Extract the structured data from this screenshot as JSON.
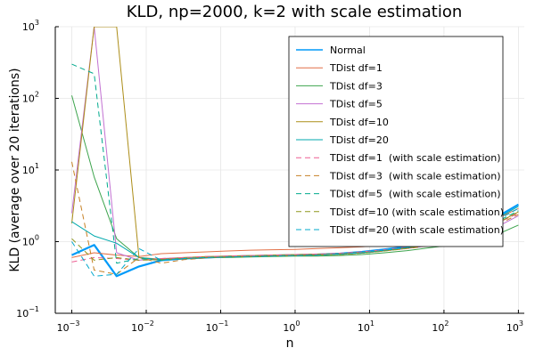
{
  "chart_data": {
    "type": "line",
    "title": "KLD, np=2000, k=2 with scale estimation",
    "xlabel": "n",
    "ylabel": "KLD (average over 20 iterations)",
    "xscale": "log",
    "yscale": "log",
    "xlim": [
      0.0006,
      1200
    ],
    "ylim": [
      0.1,
      1000
    ],
    "x_ticks": [
      {
        "value": 0.001,
        "base": "10",
        "exp": "−3"
      },
      {
        "value": 0.01,
        "base": "10",
        "exp": "−2"
      },
      {
        "value": 0.1,
        "base": "10",
        "exp": "−1"
      },
      {
        "value": 1,
        "base": "10",
        "exp": "0"
      },
      {
        "value": 10,
        "base": "10",
        "exp": "1"
      },
      {
        "value": 100,
        "base": "10",
        "exp": "2"
      },
      {
        "value": 1000,
        "base": "10",
        "exp": "3"
      }
    ],
    "y_ticks": [
      {
        "value": 0.1,
        "base": "10",
        "exp": "−1"
      },
      {
        "value": 1,
        "base": "10",
        "exp": "0"
      },
      {
        "value": 10,
        "base": "10",
        "exp": "1"
      },
      {
        "value": 100,
        "base": "10",
        "exp": "2"
      },
      {
        "value": 1000,
        "base": "10",
        "exp": "3"
      }
    ],
    "grid": true,
    "legend_position": "top-right",
    "x": [
      0.001,
      0.002,
      0.004,
      0.008,
      0.016,
      0.032,
      0.064,
      0.125,
      0.25,
      0.5,
      1,
      2,
      4,
      8,
      16,
      32,
      64,
      128,
      256,
      512,
      1000
    ],
    "series": [
      {
        "name": "Normal",
        "color": "#009af9",
        "dash": "solid",
        "width": 2.2,
        "values": [
          0.65,
          0.9,
          0.33,
          0.45,
          0.55,
          0.58,
          0.6,
          0.62,
          0.63,
          0.64,
          0.65,
          0.66,
          0.68,
          0.72,
          0.78,
          0.85,
          0.95,
          1.15,
          1.5,
          2.2,
          3.3
        ]
      },
      {
        "name": "TDist df=1",
        "color": "#e26f46",
        "dash": "solid",
        "width": 1,
        "values": [
          0.6,
          0.7,
          0.65,
          0.62,
          0.68,
          0.7,
          0.72,
          0.74,
          0.76,
          0.77,
          0.78,
          0.8,
          0.82,
          0.85,
          0.9,
          0.98,
          1.08,
          1.25,
          1.55,
          2.1,
          2.9
        ]
      },
      {
        "name": "TDist df=3",
        "color": "#3da44d",
        "dash": "solid",
        "width": 1,
        "values": [
          110,
          8,
          1.1,
          0.6,
          0.55,
          0.58,
          0.6,
          0.6,
          0.61,
          0.62,
          0.63,
          0.63,
          0.64,
          0.66,
          0.7,
          0.75,
          0.82,
          0.9,
          1.0,
          1.25,
          1.7
        ]
      },
      {
        "name": "TDist df=5",
        "color": "#c271d2",
        "dash": "solid",
        "width": 1,
        "values": [
          2.5,
          1000,
          0.7,
          0.55,
          0.58,
          0.6,
          0.61,
          0.62,
          0.63,
          0.64,
          0.65,
          0.66,
          0.67,
          0.7,
          0.75,
          0.8,
          0.88,
          1.0,
          1.2,
          1.6,
          2.3
        ]
      },
      {
        "name": "TDist df=10",
        "color": "#ac8d18",
        "dash": "solid",
        "width": 1,
        "values": [
          1.8,
          1000,
          1000,
          0.6,
          0.57,
          0.6,
          0.62,
          0.63,
          0.64,
          0.65,
          0.66,
          0.67,
          0.68,
          0.71,
          0.76,
          0.82,
          0.9,
          1.05,
          1.3,
          1.8,
          2.6
        ]
      },
      {
        "name": "TDist df=20",
        "color": "#00a9ad",
        "dash": "solid",
        "width": 1,
        "values": [
          1.9,
          1.2,
          0.95,
          0.6,
          0.56,
          0.58,
          0.6,
          0.61,
          0.62,
          0.63,
          0.64,
          0.65,
          0.67,
          0.7,
          0.76,
          0.83,
          0.92,
          1.1,
          1.45,
          2.1,
          3.1
        ]
      },
      {
        "name": "TDist df=1  (with scale estimation)",
        "color": "#ed5d92",
        "dash": "dashed",
        "width": 1,
        "values": [
          0.52,
          0.6,
          0.58,
          0.55,
          0.58,
          0.6,
          0.62,
          0.63,
          0.64,
          0.65,
          0.66,
          0.67,
          0.69,
          0.72,
          0.77,
          0.84,
          0.93,
          1.08,
          1.35,
          1.8,
          2.5
        ]
      },
      {
        "name": "TDist df=3  (with scale estimation)",
        "color": "#c68125",
        "dash": "dashed",
        "width": 1,
        "values": [
          13,
          0.4,
          0.35,
          0.6,
          0.5,
          0.56,
          0.59,
          0.61,
          0.62,
          0.63,
          0.64,
          0.65,
          0.66,
          0.69,
          0.74,
          0.8,
          0.88,
          1.02,
          1.28,
          1.7,
          2.4
        ]
      },
      {
        "name": "TDist df=5  (with scale estimation)",
        "color": "#00a98d",
        "dash": "dashed",
        "width": 1,
        "values": [
          300,
          220,
          0.5,
          0.58,
          0.55,
          0.58,
          0.6,
          0.61,
          0.62,
          0.63,
          0.64,
          0.65,
          0.67,
          0.7,
          0.75,
          0.82,
          0.9,
          1.05,
          1.35,
          1.9,
          2.7
        ]
      },
      {
        "name": "TDist df=10 (with scale estimation)",
        "color": "#8e971d",
        "dash": "dashed",
        "width": 1,
        "values": [
          1.1,
          0.55,
          0.6,
          0.55,
          0.56,
          0.58,
          0.6,
          0.61,
          0.62,
          0.63,
          0.64,
          0.65,
          0.66,
          0.69,
          0.74,
          0.81,
          0.9,
          1.04,
          1.3,
          1.8,
          2.6
        ]
      },
      {
        "name": "TDist df=20 (with scale estimation)",
        "color": "#00a8cb",
        "dash": "dashed",
        "width": 1,
        "values": [
          1.0,
          0.33,
          0.35,
          0.8,
          0.55,
          0.58,
          0.6,
          0.61,
          0.62,
          0.63,
          0.64,
          0.65,
          0.67,
          0.7,
          0.76,
          0.83,
          0.92,
          1.08,
          1.4,
          2.0,
          2.9
        ]
      }
    ]
  }
}
